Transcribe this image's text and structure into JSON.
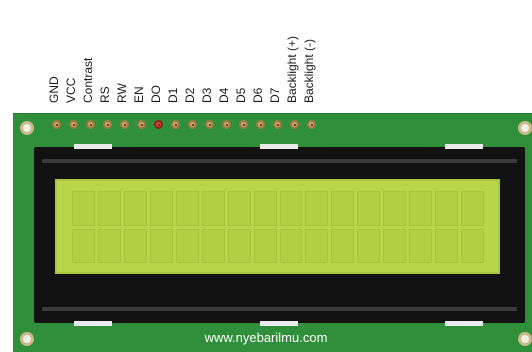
{
  "pin_labels": [
    "GND",
    "VCC",
    "Contrast",
    "RS",
    "RW",
    "EN",
    "DO",
    "D1",
    "D2",
    "D3",
    "D4",
    "D5",
    "D6",
    "D7",
    "Backlight (+)",
    "Backlight (-)"
  ],
  "website": "www.nyebarilmu.com",
  "lcd": {
    "columns": 16,
    "rows": 2
  },
  "colors": {
    "board": "#2f8f3a",
    "bezel": "#121212",
    "screen": "#b8d44a",
    "pin": "#c9a36a",
    "pin_highlight": "#d24a3a"
  }
}
